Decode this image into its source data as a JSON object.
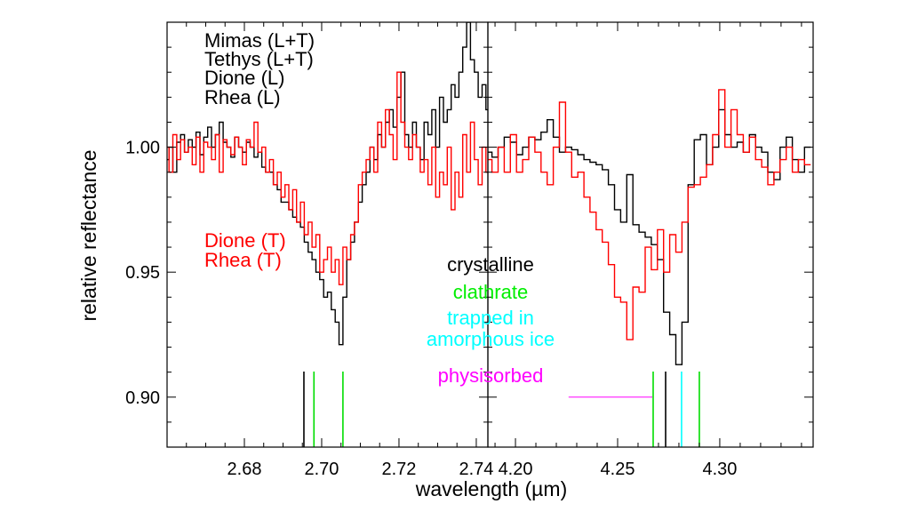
{
  "chart_data": {
    "type": "line",
    "title": "",
    "xlabel": "wavelength (µm)",
    "ylabel": "relative reflectance",
    "ylim": [
      0.88,
      1.05
    ],
    "yticks": [
      {
        "v": 0.9,
        "label": "0.90"
      },
      {
        "v": 0.95,
        "label": "0.95"
      },
      {
        "v": 1.0,
        "label": "1.00"
      }
    ],
    "grid": false,
    "panels": [
      {
        "xlim": [
          2.66,
          2.743
        ],
        "xticks": [
          {
            "v": 2.68,
            "label": "2.68"
          },
          {
            "v": 2.7,
            "label": "2.70"
          },
          {
            "v": 2.72,
            "label": "2.72"
          },
          {
            "v": 2.74,
            "label": "2.74"
          }
        ],
        "x_start": 2.66,
        "x_step": 0.001,
        "series": [
          {
            "name": "Mimas (L+T), Tethys (L+T), Dione (L), Rhea (L)",
            "color": "#000000",
            "values": [
              0.995,
              1.0,
              0.99,
              1.002,
              1.005,
              0.998,
              1.003,
              1.0,
              1.006,
              0.997,
              1.004,
              1.008,
              1.0,
              1.005,
              1.01,
              1.002,
              1.0,
              0.996,
              1.004,
              1.0,
              0.998,
              1.002,
              1.0,
              0.996,
              0.998,
              0.992,
              0.99,
              0.99,
              0.985,
              0.983,
              0.978,
              0.978,
              0.975,
              0.972,
              0.97,
              0.968,
              0.962,
              0.958,
              0.955,
              0.95,
              0.947,
              0.94,
              0.942,
              0.935,
              0.93,
              0.921,
              0.94,
              0.955,
              0.962,
              0.97,
              0.978,
              0.985,
              0.99,
              1.0,
              0.995,
              1.005,
              1.0,
              1.01,
              1.015,
              1.008,
              1.02,
              1.03,
              1.005,
              1.0,
              1.01,
              1.0,
              0.995,
              1.01,
              1.005,
              1.015,
              1.0,
              1.02,
              1.01,
              1.015,
              1.025,
              1.02,
              1.03,
              1.04,
              1.05,
              1.035,
              1.03,
              1.02,
              1.025,
              1.015
            ]
          },
          {
            "name": "Dione (T), Rhea (T)",
            "color": "#ff0000",
            "values": [
              1.0,
              0.99,
              1.005,
              0.995,
              1.003,
              0.998,
              1.0,
              0.993,
              1.004,
              0.99,
              1.002,
              1.0,
              0.995,
              1.005,
              0.99,
              1.003,
              1.0,
              0.997,
              1.004,
              1.0,
              0.993,
              1.003,
              1.0,
              1.01,
              0.998,
              1.0,
              0.99,
              0.995,
              0.985,
              0.99,
              0.98,
              0.985,
              0.975,
              0.983,
              0.97,
              0.978,
              0.965,
              0.97,
              0.96,
              0.965,
              0.95,
              0.955,
              0.96,
              0.95,
              0.955,
              0.945,
              0.96,
              0.955,
              0.965,
              0.97,
              0.985,
              0.99,
              0.995,
              1.0,
              0.99,
              1.01,
              1.0,
              1.015,
              1.005,
              0.995,
              1.03,
              1.01,
              1.0,
              0.995,
              1.005,
              1.0,
              0.99,
              0.995,
              0.985,
              1.0,
              0.98,
              0.99,
              0.985,
              1.0,
              0.975,
              0.99,
              0.98,
              1.005,
              0.99,
              1.01,
              0.995,
              0.985,
              1.0,
              0.99
            ]
          }
        ],
        "reference_lines": [
          {
            "x": 2.6954,
            "color": "#000000",
            "type": "crystalline"
          },
          {
            "x": 2.698,
            "color": "#00dd00",
            "type": "clathrate"
          },
          {
            "x": 2.7055,
            "color": "#00dd00",
            "type": "clathrate"
          }
        ]
      },
      {
        "xlim": [
          4.1865,
          4.3457
        ],
        "xticks": [
          {
            "v": 4.2,
            "label": "4.20"
          },
          {
            "v": 4.25,
            "label": "4.25"
          },
          {
            "v": 4.3,
            "label": "4.30"
          }
        ],
        "x_start": 4.187,
        "x_step": 0.003,
        "series": [
          {
            "name": "Mimas (L+T), Tethys (L+T), Dione (L), Rhea (L)",
            "color": "#000000",
            "values": [
              0.998,
              0.996,
              1.0,
              1.004,
              1.002,
              0.997,
              1.0,
              1.004,
              1.003,
              1.006,
              1.011,
              1.004,
              0.998,
              1.0,
              0.999,
              0.997,
              0.995,
              0.994,
              0.993,
              0.991,
              0.985,
              0.975,
              0.97,
              0.989,
              0.969,
              0.966,
              0.964,
              0.961,
              0.955,
              0.934,
              0.925,
              0.913,
              0.93,
              0.985,
              1.003,
              1.005,
              0.993,
              1.0,
              1.015,
              1.005,
              1.0,
              1.002,
              0.998,
              1.005,
              1.0,
              0.998,
              0.99,
              0.987,
              1.0,
              1.004,
              0.995,
              0.99,
              1.0
            ]
          },
          {
            "name": "Dione (T), Rhea (T)",
            "color": "#ff0000",
            "values": [
              0.995,
              0.99,
              1.0,
              0.99,
              1.005,
              0.99,
              0.995,
              1.004,
              0.998,
              0.99,
              0.985,
              1.0,
              1.018,
              0.998,
              0.988,
              0.99,
              0.98,
              0.974,
              0.967,
              0.962,
              0.953,
              0.94,
              0.938,
              0.923,
              0.944,
              0.942,
              0.96,
              0.951,
              0.967,
              0.95,
              0.965,
              0.958,
              0.97,
              0.984,
              0.985,
              0.988,
              0.993,
              1.005,
              1.023,
              1.0,
              1.015,
              1.005,
              0.998,
              1.004,
              0.995,
              0.992,
              0.985,
              0.99,
              0.995,
              1.0,
              0.99,
              0.995,
              0.993
            ]
          }
        ],
        "reference_lines": [
          {
            "x": 4.2674,
            "color": "#00dd00",
            "type": "clathrate"
          },
          {
            "x": 4.2735,
            "color": "#000000",
            "type": "crystalline"
          },
          {
            "x": 4.2813,
            "color": "#00ffff",
            "type": "trapped in amorphous ice"
          },
          {
            "x": 4.29,
            "color": "#00dd00",
            "type": "clathrate"
          }
        ],
        "physisorbed_range": {
          "x": [
            4.226,
            4.267
          ],
          "y": 0.9,
          "color": "#ff00ff"
        }
      }
    ],
    "legend": {
      "placement": "top-left",
      "black_entries": [
        "Mimas (L+T)",
        "Tethys (L+T)",
        "Dione (L)",
        "Rhea (L)"
      ],
      "red_entries": [
        "Dione (T)",
        "Rhea (T)"
      ]
    },
    "annotations": [
      {
        "text": "crystalline",
        "color": "#000000"
      },
      {
        "text": "clathrate",
        "color": "#00ee00"
      },
      {
        "text": "trapped in",
        "color": "#00ffff"
      },
      {
        "text": "amorphous ice",
        "color": "#00ffff"
      },
      {
        "text": "physisorbed",
        "color": "#ff00ff"
      }
    ]
  }
}
